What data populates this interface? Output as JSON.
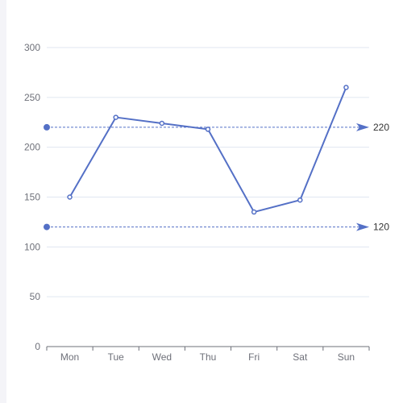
{
  "chart_data": {
    "type": "line",
    "categories": [
      "Mon",
      "Tue",
      "Wed",
      "Thu",
      "Fri",
      "Sat",
      "Sun"
    ],
    "series": [
      {
        "values": [
          150,
          230,
          224,
          218,
          135,
          147,
          260
        ]
      }
    ],
    "ylim": [
      0,
      300
    ],
    "yticks": [
      "0",
      "50",
      "100",
      "150",
      "200",
      "250",
      "300"
    ],
    "mark_lines": [
      {
        "value": 220,
        "label": "220"
      },
      {
        "value": 120,
        "label": "120"
      }
    ],
    "grid": true,
    "colors": {
      "line": "#5470c6",
      "grid": "#e0e6f1",
      "axis": "#6e7079"
    }
  }
}
